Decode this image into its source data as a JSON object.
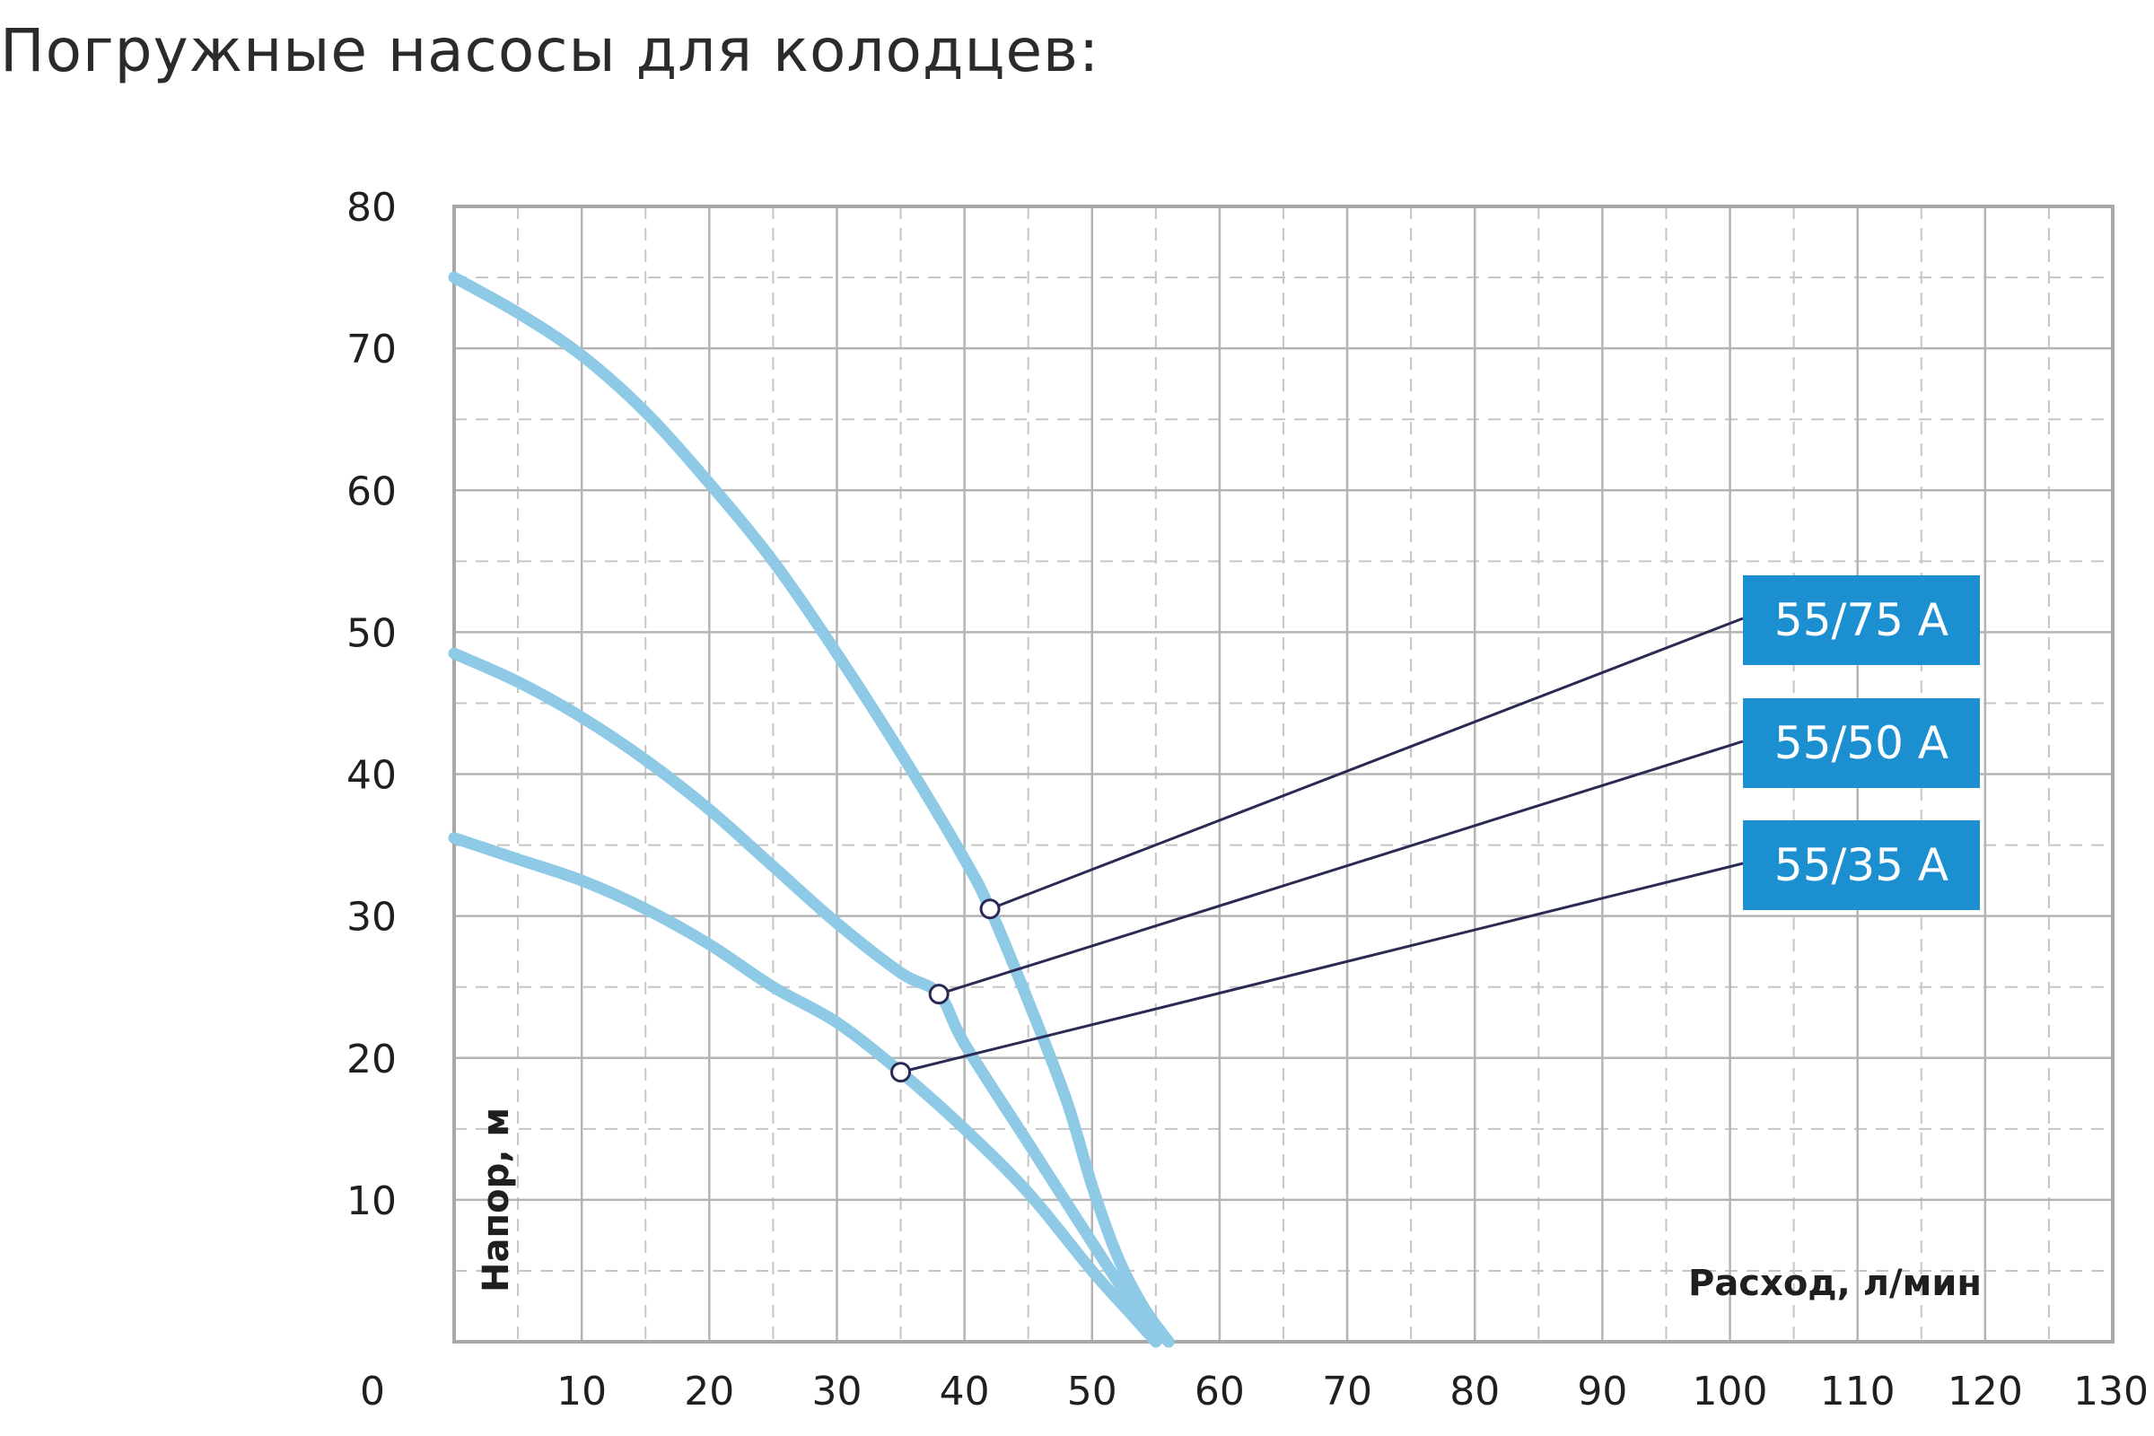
{
  "page": {
    "title": "Погружные насосы для колодцев:"
  },
  "chart_data": {
    "type": "line",
    "xlabel": "Расход, л/мин",
    "ylabel": "Напор, м",
    "xlim": [
      0,
      130
    ],
    "ylim": [
      0,
      80
    ],
    "x_ticks": [
      "0",
      "10",
      "20",
      "30",
      "40",
      "50",
      "60",
      "70",
      "80",
      "90",
      "100",
      "110",
      "120",
      "130"
    ],
    "y_ticks": [
      "10",
      "20",
      "30",
      "40",
      "50",
      "60",
      "70",
      "80"
    ],
    "grid": true,
    "line_color": "#8ecae6",
    "legend_color": "#1c8fd0",
    "series": [
      {
        "name": "55/75 A",
        "points": [
          [
            0,
            75
          ],
          [
            5,
            72.5
          ],
          [
            10,
            69.5
          ],
          [
            15,
            65.5
          ],
          [
            20,
            60.5
          ],
          [
            25,
            55
          ],
          [
            30,
            48.5
          ],
          [
            35,
            41.5
          ],
          [
            40,
            34
          ],
          [
            42,
            30.5
          ],
          [
            45,
            24
          ],
          [
            48,
            17
          ],
          [
            50,
            11
          ],
          [
            52,
            6
          ],
          [
            54,
            2.5
          ],
          [
            56,
            0
          ]
        ],
        "marker": [
          42,
          30.5
        ]
      },
      {
        "name": "55/50 A",
        "points": [
          [
            0,
            48.5
          ],
          [
            5,
            46.5
          ],
          [
            10,
            44
          ],
          [
            15,
            41
          ],
          [
            20,
            37.5
          ],
          [
            25,
            33.5
          ],
          [
            30,
            29.5
          ],
          [
            35,
            26
          ],
          [
            38,
            24.5
          ],
          [
            40,
            21
          ],
          [
            45,
            14
          ],
          [
            50,
            7
          ],
          [
            53,
            3
          ],
          [
            56,
            0
          ]
        ],
        "marker": [
          38,
          24.5
        ]
      },
      {
        "name": "55/35 A",
        "points": [
          [
            0,
            35.5
          ],
          [
            5,
            34
          ],
          [
            10,
            32.5
          ],
          [
            15,
            30.5
          ],
          [
            20,
            28
          ],
          [
            25,
            25
          ],
          [
            30,
            22.5
          ],
          [
            35,
            19
          ],
          [
            40,
            15
          ],
          [
            45,
            10.5
          ],
          [
            50,
            5
          ],
          [
            53,
            2
          ],
          [
            55,
            0
          ]
        ],
        "marker": [
          35,
          19
        ]
      }
    ]
  }
}
